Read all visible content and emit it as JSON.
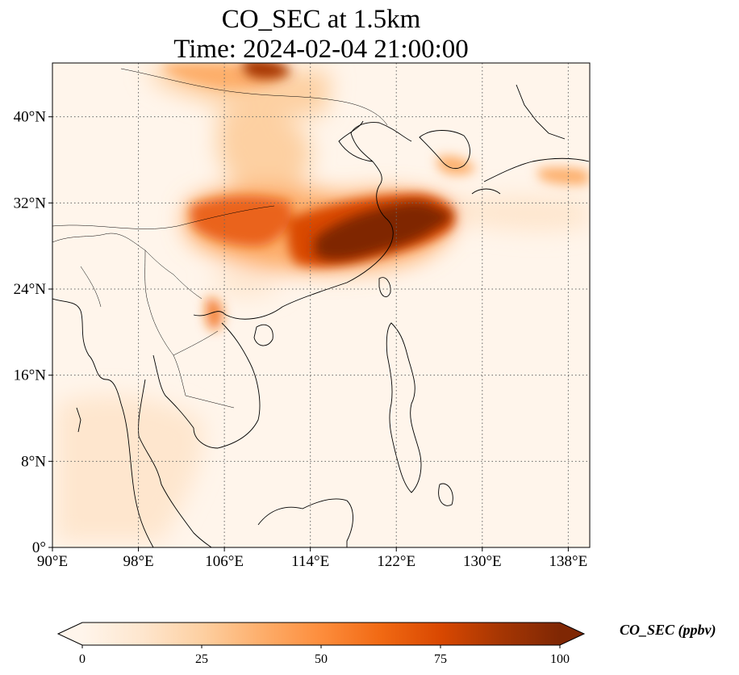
{
  "title": {
    "line1": "CO_SEC at 1.5km",
    "line2": "Time: 2024-02-04 21:00:00"
  },
  "map": {
    "extent": {
      "lon_min": 90,
      "lon_max": 140,
      "lat_min": 0,
      "lat_max": 45
    },
    "gridlines": {
      "lons": [
        98,
        106,
        114,
        122,
        130,
        138
      ],
      "lats": [
        8,
        16,
        24,
        32,
        40
      ],
      "style": "dotted"
    },
    "x_ticks": [
      {
        "value": 90,
        "label": "90°E"
      },
      {
        "value": 98,
        "label": "98°E"
      },
      {
        "value": 106,
        "label": "106°E"
      },
      {
        "value": 114,
        "label": "114°E"
      },
      {
        "value": 122,
        "label": "122°E"
      },
      {
        "value": 130,
        "label": "130°E"
      },
      {
        "value": 138,
        "label": "138°E"
      }
    ],
    "y_ticks": [
      {
        "value": 0,
        "label": "0°"
      },
      {
        "value": 8,
        "label": "8°N"
      },
      {
        "value": 16,
        "label": "16°N"
      },
      {
        "value": 24,
        "label": "24°N"
      },
      {
        "value": 32,
        "label": "32°N"
      },
      {
        "value": 40,
        "label": "40°N"
      }
    ],
    "field_description_hotspots": [
      {
        "lon": 120.5,
        "lat": 30.8,
        "value": 100
      },
      {
        "lon": 125.0,
        "lat": 31.2,
        "value": 95
      },
      {
        "lon": 118.0,
        "lat": 28.5,
        "value": 85
      },
      {
        "lon": 110.0,
        "lat": 30.5,
        "value": 65
      },
      {
        "lon": 105.5,
        "lat": 30.0,
        "value": 60
      },
      {
        "lon": 111.0,
        "lat": 43.5,
        "value": 55
      },
      {
        "lon": 108.5,
        "lat": 38.0,
        "value": 30
      },
      {
        "lon": 105.8,
        "lat": 20.8,
        "value": 45
      },
      {
        "lon": 135.0,
        "lat": 34.5,
        "value": 25
      }
    ]
  },
  "colorbar": {
    "min": 0,
    "max": 100,
    "extend": "both",
    "colormap": [
      "#fff5eb",
      "#fee6ce",
      "#fdd0a2",
      "#fdae6b",
      "#fd8d3c",
      "#f16913",
      "#d94801",
      "#a63603",
      "#7f2704"
    ],
    "ticks": [
      {
        "value": 0,
        "label": "0"
      },
      {
        "value": 25,
        "label": "25"
      },
      {
        "value": 50,
        "label": "50"
      },
      {
        "value": 75,
        "label": "75"
      },
      {
        "value": 100,
        "label": "100"
      }
    ],
    "label": "CO_SEC (ppbv)"
  }
}
